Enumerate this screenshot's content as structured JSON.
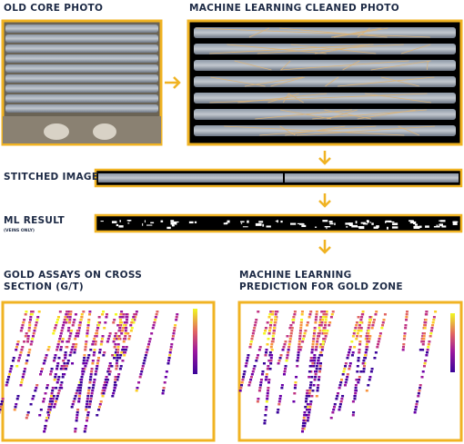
{
  "panels": {
    "old_core": {
      "title": "OLD CORE PHOTO"
    },
    "cleaned": {
      "title": "MACHINE LEARNING CLEANED PHOTO"
    },
    "stitched": {
      "title": "STITCHED IMAGE"
    },
    "ml_result": {
      "title": "ML RESULT",
      "subtitle": "(VEINS ONLY)"
    },
    "assays": {
      "title": "GOLD ASSAYS ON CROSS SECTION (G/T)"
    },
    "prediction": {
      "title": "MACHINE LEARNING PREDICTION FOR GOLD ZONE"
    }
  }
}
